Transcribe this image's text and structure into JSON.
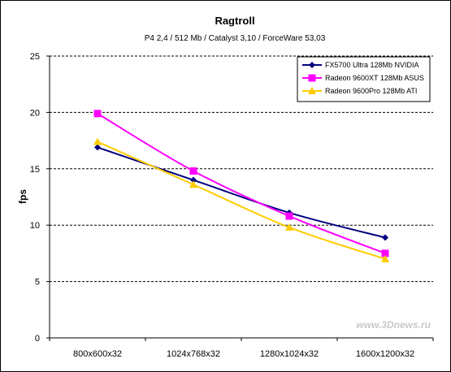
{
  "chart_data": {
    "type": "line",
    "title": "Ragtroll",
    "subtitle": "P4 2,4 / 512 Mb / Catalyst 3,10 / ForceWare 53,03",
    "xlabel": "",
    "ylabel": "fps",
    "categories": [
      "800x600x32",
      "1024x768x32",
      "1280x1024x32",
      "1600x1200x32"
    ],
    "ylim": [
      0,
      25
    ],
    "yticks": [
      0,
      5,
      10,
      15,
      20,
      25
    ],
    "grid": "horizontal-dashed",
    "legend_position": "top-right",
    "series": [
      {
        "name": "FX5700 Ultra 128Mb NVIDIA",
        "values": [
          16.9,
          14.0,
          11.1,
          8.9
        ],
        "color": "#000080",
        "marker": "diamond"
      },
      {
        "name": "Radeon 9600XT 128Mb ASUS",
        "values": [
          19.9,
          14.8,
          10.8,
          7.5
        ],
        "color": "#ff00ff",
        "marker": "square"
      },
      {
        "name": "Radeon 9600Pro 128Mb ATI",
        "values": [
          17.4,
          13.6,
          9.8,
          7.0
        ],
        "color": "#ffcc00",
        "marker": "triangle"
      }
    ],
    "watermark": "www.3Dnews.ru"
  }
}
